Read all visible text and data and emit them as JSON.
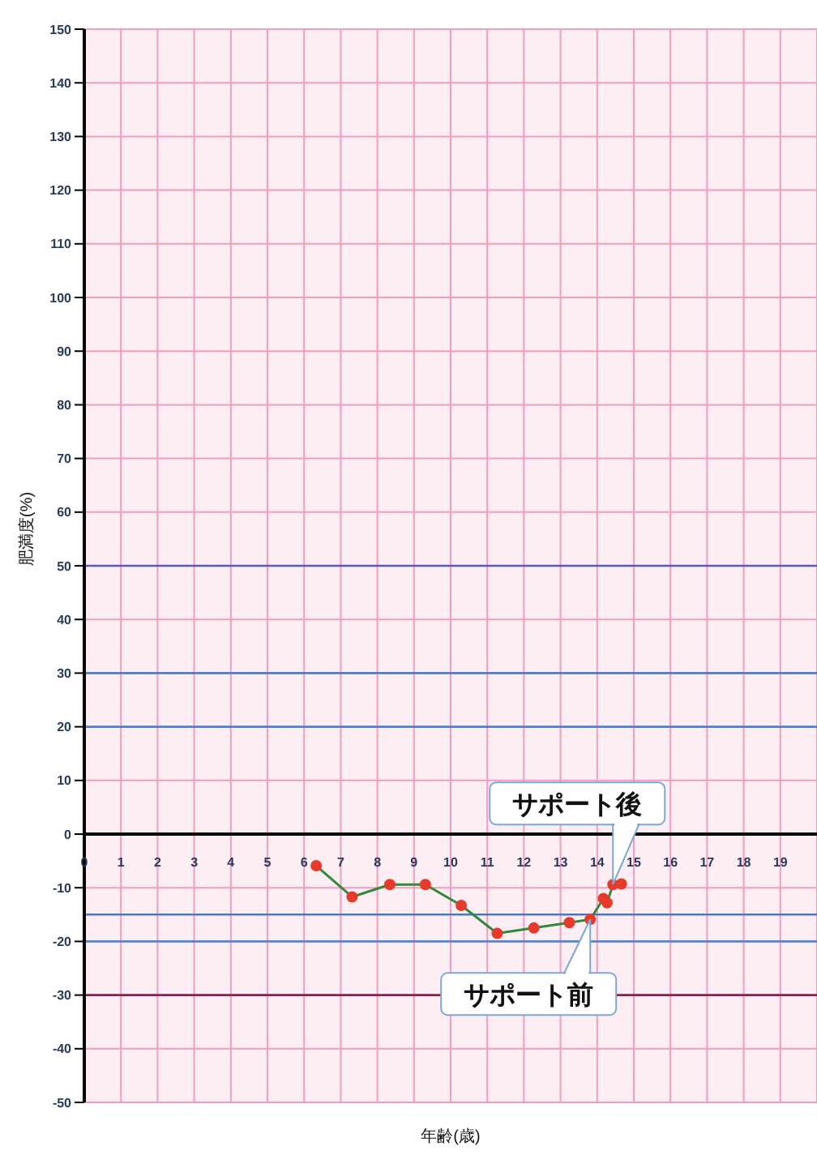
{
  "chart_data": {
    "type": "line",
    "xlabel": "年齢(歳)",
    "ylabel": "肥満度(%)",
    "x": [
      6.33,
      7.31,
      8.34,
      9.31,
      10.29,
      11.27,
      12.27,
      13.24,
      13.81,
      14.17,
      14.27,
      14.43,
      14.66
    ],
    "series": [
      {
        "color": "#2e8b3a",
        "colors": [
          "#e83a2a",
          "#e83a2a",
          "#e83a2a",
          "#e83a2a",
          "#e83a2a",
          "#e83a2a",
          "#e83a2a",
          "#e83a2a",
          "#e83a2a",
          "#e83a2a",
          "#e83a2a",
          "#e83a2a",
          "#e83a2a"
        ],
        "values": [
          -5.9,
          -11.7,
          -9.4,
          -9.4,
          -13.3,
          -18.5,
          -17.5,
          -16.5,
          -15.9,
          -12.0,
          -12.8,
          -9.4,
          -9.3
        ]
      }
    ],
    "marker": "circle",
    "line_style": "solid",
    "xlim": [
      0,
      20
    ],
    "xticks": [
      0,
      1,
      2,
      3,
      4,
      5,
      6,
      7,
      8,
      9,
      10,
      11,
      12,
      13,
      14,
      15,
      16,
      17,
      18,
      19
    ],
    "ylim": [
      -50,
      150
    ],
    "yticks": [
      -50,
      -40,
      -30,
      -20,
      -10,
      0,
      10,
      20,
      30,
      40,
      50,
      60,
      70,
      80,
      90,
      100,
      110,
      120,
      130,
      140,
      150
    ],
    "grid": true,
    "legend": false,
    "ref_lines": [
      {
        "axis": "y",
        "value": 50,
        "color": "#5a5ab8"
      },
      {
        "axis": "y",
        "value": 30,
        "color": "#4a7fd0"
      },
      {
        "axis": "y",
        "value": 20,
        "color": "#4d82d4"
      },
      {
        "axis": "y",
        "value": -15,
        "color": "#4678cc"
      },
      {
        "axis": "y",
        "value": -20,
        "color": "#5088d8"
      },
      {
        "axis": "y",
        "value": -30,
        "color": "#8b2050"
      }
    ],
    "annotations": [
      {
        "text": "サポート後",
        "x": 14.43,
        "y": -9.4
      },
      {
        "text": "サポート前",
        "x": 13.81,
        "y": -15.9
      }
    ]
  }
}
